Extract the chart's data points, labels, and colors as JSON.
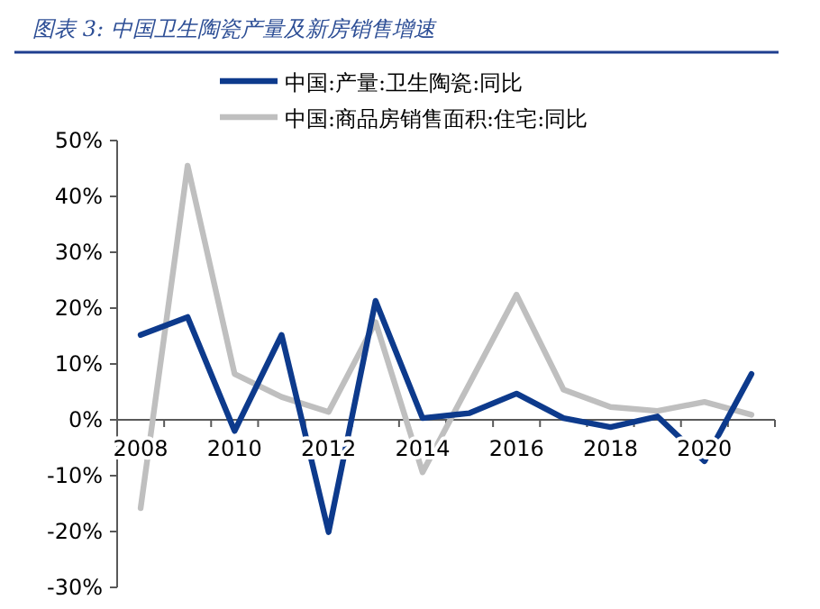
{
  "chart_data": {
    "type": "line",
    "title": "图表 3:  中国卫生陶瓷产量及新房销售增速",
    "categories": [
      "2008",
      null,
      "2010",
      null,
      "2012",
      null,
      "2014",
      null,
      "2016",
      null,
      "2018",
      null,
      "2020",
      null
    ],
    "series": [
      {
        "name": "中国:产量:卫生陶瓷:同比",
        "color": "#0d3a8c",
        "values": [
          15.2,
          18.4,
          -2.0,
          15.2,
          -20.1,
          21.3,
          0.3,
          1.2,
          4.7,
          0.3,
          -1.3,
          0.6,
          -7.4,
          8.2
        ]
      },
      {
        "name": "中国:商品房销售面积:住宅:同比",
        "color": "#bfbfbf",
        "values": [
          -15.8,
          45.5,
          8.2,
          4.1,
          1.4,
          17.5,
          -9.4,
          6.5,
          22.4,
          5.4,
          2.3,
          1.6,
          3.2,
          0.9
        ]
      }
    ],
    "ylim": [
      -30,
      50
    ],
    "yticks": [
      {
        "value": -30,
        "label": "-30%"
      },
      {
        "value": -20,
        "label": "-20%"
      },
      {
        "value": -10,
        "label": "-10%"
      },
      {
        "value": 0,
        "label": "0%"
      },
      {
        "value": 10,
        "label": "10%"
      },
      {
        "value": 20,
        "label": "20%"
      },
      {
        "value": 30,
        "label": "30%"
      },
      {
        "value": 40,
        "label": "40%"
      },
      {
        "value": 50,
        "label": "50%"
      }
    ],
    "grid": false,
    "legend": "top",
    "marker": "none",
    "line_style": "solid"
  }
}
